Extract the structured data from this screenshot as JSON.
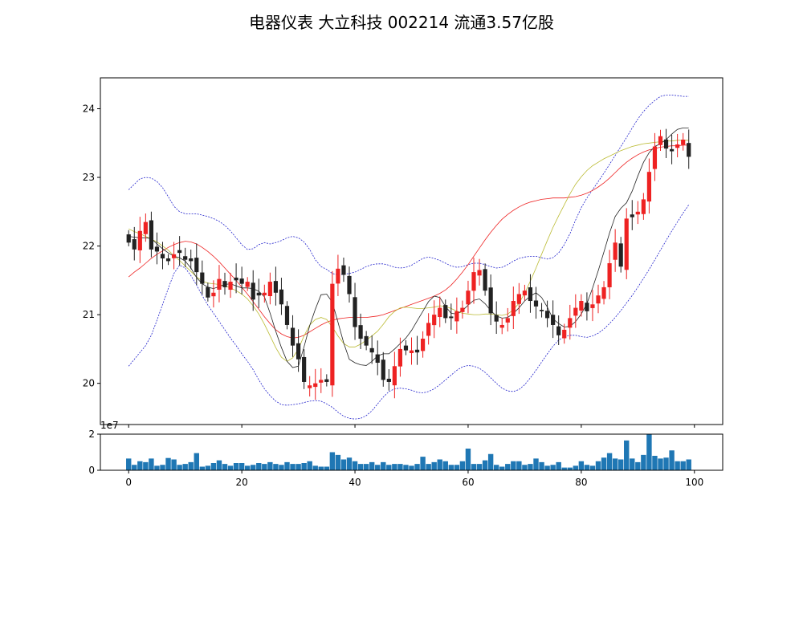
{
  "title": "电器仪表 大立科技 002214 流通3.57亿股",
  "chart_data": [
    {
      "type": "candlestick",
      "panel": "price",
      "xlim": [
        -5,
        105
      ],
      "ylim": [
        19.4,
        24.45
      ],
      "y_ticks": [
        "20",
        "21",
        "22",
        "23",
        "24"
      ],
      "up_color": "#ee2222",
      "down_color": "#222222",
      "ma_colors": {
        "short": "#222222",
        "medium": "#bbbb33",
        "long": "#ee2222"
      },
      "band_color": "#2222cc",
      "closes": [
        22.05,
        21.95,
        22.22,
        22.35,
        21.95,
        21.92,
        21.82,
        21.78,
        21.88,
        21.9,
        21.8,
        21.78,
        21.62,
        21.45,
        21.25,
        21.32,
        21.52,
        21.4,
        21.48,
        21.5,
        21.45,
        21.48,
        21.22,
        21.28,
        21.32,
        21.48,
        21.32,
        21.15,
        20.85,
        20.55,
        20.35,
        20.02,
        19.97,
        20.0,
        20.05,
        20.02,
        21.45,
        21.67,
        21.58,
        21.3,
        20.82,
        20.65,
        20.55,
        20.45,
        20.3,
        20.05,
        20.02,
        20.25,
        20.5,
        20.48,
        20.48,
        20.45,
        20.65,
        20.88,
        21.0,
        21.1,
        20.95,
        20.95,
        21.05,
        21.1,
        21.35,
        21.62,
        21.65,
        21.35,
        21.02,
        20.9,
        20.85,
        20.95,
        21.2,
        21.3,
        21.35,
        21.2,
        21.12,
        21.05,
        20.95,
        20.85,
        20.7,
        20.78,
        20.95,
        21.1,
        21.2,
        21.05,
        21.15,
        21.28,
        21.4,
        21.75,
        22.05,
        21.7,
        22.4,
        22.42,
        22.5,
        22.68,
        23.08,
        23.45,
        23.6,
        23.42,
        23.38,
        23.48,
        23.55,
        23.3
      ],
      "ma_short": [
        22.14,
        22.13,
        22.12,
        22.12,
        22.11,
        22.03,
        21.96,
        21.9,
        21.85,
        21.83,
        21.78,
        21.68,
        21.54,
        21.45,
        21.4,
        21.38,
        21.41,
        21.44,
        21.45,
        21.42,
        21.39,
        21.39,
        21.38,
        21.34,
        21.26,
        21.02,
        20.76,
        20.52,
        20.32,
        20.23,
        20.25,
        20.53,
        20.84,
        21.08,
        21.29,
        21.3,
        21.18,
        20.89,
        20.59,
        20.35,
        20.3,
        20.27,
        20.26,
        20.32,
        20.4,
        20.43,
        20.43,
        20.5,
        20.58,
        20.66,
        20.77,
        20.91,
        21.05,
        21.19,
        21.27,
        21.25,
        21.12,
        21.02,
        21.01,
        21.06,
        21.14,
        21.21,
        21.23,
        21.16,
        21.06,
        20.98,
        20.95,
        20.96,
        21.02,
        21.1,
        21.2,
        21.27,
        21.32,
        21.25,
        21.11,
        20.94,
        20.87,
        20.82,
        20.83,
        20.9,
        21.01,
        21.16,
        21.39,
        21.64,
        21.91,
        22.19,
        22.43,
        22.55,
        22.63,
        22.8,
        23.02,
        23.22,
        23.36,
        23.45,
        23.49,
        23.55,
        23.63,
        23.7,
        23.72,
        23.72
      ],
      "ma_medium": [
        22.25,
        22.21,
        22.18,
        22.14,
        22.1,
        22.06,
        22.0,
        21.94,
        21.86,
        21.79,
        21.71,
        21.63,
        21.55,
        21.49,
        21.46,
        21.45,
        21.44,
        21.42,
        21.39,
        21.35,
        21.3,
        21.23,
        21.13,
        21.01,
        20.86,
        20.69,
        20.52,
        20.38,
        20.32,
        20.37,
        20.5,
        20.69,
        20.85,
        20.93,
        20.96,
        20.93,
        20.82,
        20.69,
        20.58,
        20.53,
        20.53,
        20.57,
        20.63,
        20.69,
        20.76,
        20.86,
        20.97,
        21.05,
        21.1,
        21.11,
        21.1,
        21.09,
        21.09,
        21.1,
        21.11,
        21.13,
        21.12,
        21.09,
        21.05,
        21.02,
        21.01,
        21.0,
        21.0,
        21.01,
        21.01,
        21.0,
        20.99,
        21.01,
        21.07,
        21.17,
        21.31,
        21.49,
        21.68,
        21.88,
        22.08,
        22.27,
        22.44,
        22.6,
        22.76,
        22.9,
        23.01,
        23.1,
        23.17,
        23.22,
        23.27,
        23.31,
        23.35,
        23.39,
        23.42,
        23.45,
        23.47,
        23.49,
        23.5,
        23.51,
        23.52,
        23.53,
        23.53,
        23.54,
        23.54,
        23.54
      ],
      "ma_long": [
        21.55,
        21.62,
        21.68,
        21.75,
        21.82,
        21.88,
        21.93,
        21.98,
        22.02,
        22.05,
        22.07,
        22.06,
        22.03,
        21.98,
        21.92,
        21.85,
        21.77,
        21.68,
        21.59,
        21.5,
        21.4,
        21.3,
        21.19,
        21.08,
        20.97,
        20.87,
        20.78,
        20.72,
        20.68,
        20.66,
        20.67,
        20.7,
        20.75,
        20.8,
        20.85,
        20.89,
        20.92,
        20.94,
        20.95,
        20.96,
        20.96,
        20.96,
        20.96,
        20.97,
        20.98,
        21.0,
        21.03,
        21.06,
        21.09,
        21.12,
        21.15,
        21.18,
        21.21,
        21.24,
        21.27,
        21.31,
        21.36,
        21.43,
        21.52,
        21.62,
        21.73,
        21.85,
        21.97,
        22.09,
        22.2,
        22.3,
        22.39,
        22.46,
        22.52,
        22.57,
        22.61,
        22.64,
        22.66,
        22.68,
        22.69,
        22.7,
        22.7,
        22.7,
        22.71,
        22.72,
        22.74,
        22.77,
        22.81,
        22.86,
        22.92,
        22.99,
        23.07,
        23.15,
        23.22,
        23.28,
        23.33,
        23.37,
        23.4,
        23.42,
        23.44,
        23.45,
        23.46,
        23.46,
        23.47,
        23.47
      ],
      "bb_upper": [
        22.82,
        22.9,
        22.98,
        23.0,
        22.99,
        22.94,
        22.85,
        22.72,
        22.58,
        22.5,
        22.47,
        22.47,
        22.47,
        22.45,
        22.43,
        22.4,
        22.36,
        22.3,
        22.22,
        22.12,
        22.02,
        21.95,
        21.96,
        22.02,
        22.05,
        22.03,
        22.05,
        22.08,
        22.12,
        22.14,
        22.12,
        22.06,
        21.95,
        21.8,
        21.7,
        21.66,
        21.6,
        21.58,
        21.59,
        21.6,
        21.62,
        21.66,
        21.7,
        21.73,
        21.74,
        21.74,
        21.72,
        21.69,
        21.68,
        21.69,
        21.72,
        21.77,
        21.82,
        21.84,
        21.82,
        21.79,
        21.75,
        21.71,
        21.69,
        21.7,
        21.73,
        21.75,
        21.75,
        21.73,
        21.7,
        21.68,
        21.69,
        21.73,
        21.78,
        21.82,
        21.84,
        21.85,
        21.85,
        21.83,
        21.81,
        21.83,
        21.9,
        22.02,
        22.18,
        22.38,
        22.56,
        22.7,
        22.82,
        22.94,
        23.06,
        23.19,
        23.32,
        23.45,
        23.58,
        23.72,
        23.85,
        23.96,
        24.05,
        24.12,
        24.18,
        24.2,
        24.2,
        24.19,
        24.18,
        24.18
      ],
      "bb_lower": [
        20.25,
        20.35,
        20.45,
        20.55,
        20.7,
        20.92,
        21.15,
        21.38,
        21.6,
        21.72,
        21.68,
        21.57,
        21.43,
        21.28,
        21.14,
        21.02,
        20.9,
        20.78,
        20.66,
        20.55,
        20.43,
        20.32,
        20.2,
        20.05,
        19.92,
        19.82,
        19.74,
        19.69,
        19.68,
        19.69,
        19.7,
        19.72,
        19.74,
        19.75,
        19.74,
        19.7,
        19.65,
        19.58,
        19.52,
        19.49,
        19.48,
        19.49,
        19.53,
        19.6,
        19.7,
        19.8,
        19.88,
        19.92,
        19.93,
        19.92,
        19.9,
        19.87,
        19.86,
        19.88,
        19.92,
        19.98,
        20.05,
        20.12,
        20.19,
        20.24,
        20.26,
        20.25,
        20.22,
        20.16,
        20.08,
        20.0,
        19.93,
        19.89,
        19.88,
        19.91,
        19.98,
        20.08,
        20.19,
        20.31,
        20.43,
        20.54,
        20.63,
        20.68,
        20.7,
        20.7,
        20.68,
        20.67,
        20.69,
        20.73,
        20.79,
        20.87,
        20.96,
        21.06,
        21.17,
        21.28,
        21.4,
        21.53,
        21.66,
        21.8,
        21.94,
        22.08,
        22.22,
        22.35,
        22.48,
        22.6
      ]
    },
    {
      "type": "bar",
      "panel": "volume",
      "xlim": [
        -5,
        105
      ],
      "ylim": [
        0,
        20000000
      ],
      "y_ticks": [
        "0",
        "2"
      ],
      "scale_label": "1e7",
      "x_ticks": [
        "0",
        "20",
        "40",
        "60",
        "80",
        "100"
      ],
      "color": "#1f77b4",
      "values": [
        6500000,
        3000000,
        5000000,
        4500000,
        6500000,
        2500000,
        3000000,
        6800000,
        6000000,
        3000000,
        3500000,
        4500000,
        9500000,
        2000000,
        2500000,
        4000000,
        5500000,
        3500000,
        2500000,
        4000000,
        4000000,
        2500000,
        3000000,
        4000000,
        3500000,
        4500000,
        3500000,
        3000000,
        4500000,
        3500000,
        3500000,
        4000000,
        5000000,
        2500000,
        2000000,
        2000000,
        10000000,
        8500000,
        6000000,
        7000000,
        5000000,
        3500000,
        3500000,
        4500000,
        3000000,
        4500000,
        3000000,
        3500000,
        3500000,
        3000000,
        2500000,
        3500000,
        7500000,
        3500000,
        4500000,
        6000000,
        5000000,
        3000000,
        3000000,
        5000000,
        12000000,
        3500000,
        3500000,
        5500000,
        9000000,
        3000000,
        2000000,
        3500000,
        5000000,
        5000000,
        3000000,
        3500000,
        6500000,
        4500000,
        2500000,
        3000000,
        4500000,
        1500000,
        1500000,
        2500000,
        5000000,
        3000000,
        2500000,
        5000000,
        7000000,
        9500000,
        6500000,
        6000000,
        16500000,
        6500000,
        4500000,
        8500000,
        20000000,
        8000000,
        6500000,
        7000000,
        11000000,
        5000000,
        5000000,
        6000000
      ]
    }
  ]
}
